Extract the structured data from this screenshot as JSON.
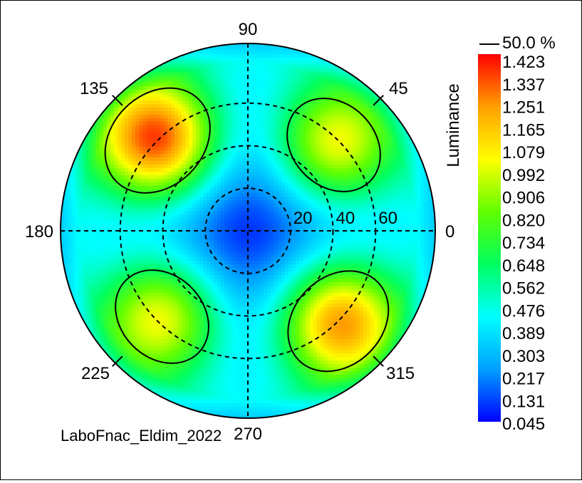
{
  "chart_data": {
    "type": "heatmap",
    "subtype": "polar-conoscopic",
    "caption": "LaboFnac_Eldim_2022",
    "colorbar": {
      "title": "Luminance",
      "contour_label": "50.0 %",
      "min": 0.045,
      "max": 1.423,
      "tick_labels": [
        "1.423",
        "1.337",
        "1.251",
        "1.165",
        "1.079",
        "0.992",
        "0.906",
        "0.820",
        "0.734",
        "0.648",
        "0.562",
        "0.476",
        "0.389",
        "0.303",
        "0.217",
        "0.131",
        "0.045"
      ]
    },
    "angular_labels": [
      {
        "deg": 0,
        "text": "0"
      },
      {
        "deg": 45,
        "text": "45"
      },
      {
        "deg": 90,
        "text": "90"
      },
      {
        "deg": 135,
        "text": "135"
      },
      {
        "deg": 180,
        "text": "180"
      },
      {
        "deg": 225,
        "text": "225"
      },
      {
        "deg": 270,
        "text": "270"
      },
      {
        "deg": 315,
        "text": "315"
      }
    ],
    "radial_rings": [
      20,
      40,
      60
    ],
    "radial_max": 88,
    "lobes": [
      {
        "azimuth_deg": 135,
        "theta_deg": 60,
        "peak": 1.423
      },
      {
        "azimuth_deg": 45,
        "theta_deg": 57,
        "peak": 1.1
      },
      {
        "azimuth_deg": 225,
        "theta_deg": 57,
        "peak": 1.1
      },
      {
        "azimuth_deg": 315,
        "theta_deg": 60,
        "peak": 1.3
      }
    ],
    "center_value": 0.045,
    "colormap": [
      "#0000ff",
      "#00a0ff",
      "#00ffff",
      "#00ff60",
      "#60ff00",
      "#ffff00",
      "#ffa000",
      "#ff0000"
    ]
  }
}
